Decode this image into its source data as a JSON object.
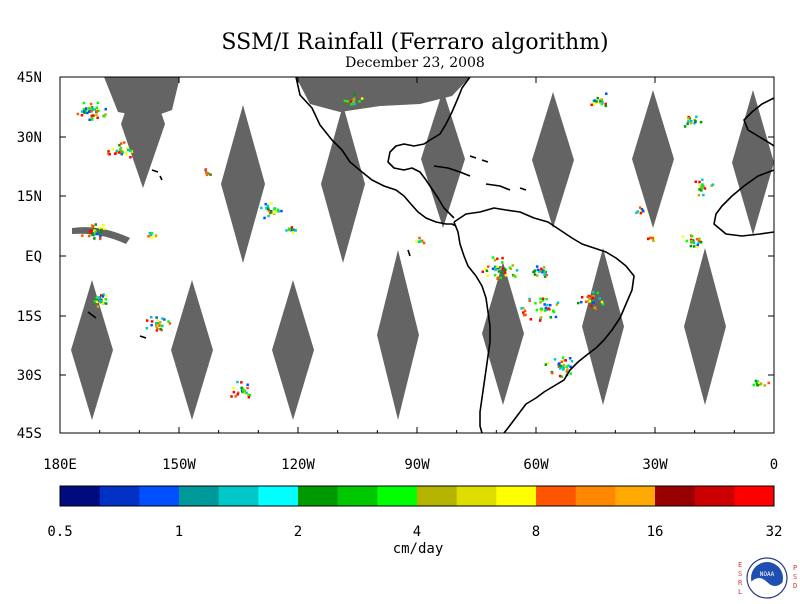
{
  "chart_data": {
    "type": "heatmap",
    "title": "SSM/I Rainfall (Ferraro algorithm)",
    "subtitle": "December 23, 2008",
    "y_ticks": [
      "45N",
      "30N",
      "15N",
      "EQ",
      "15S",
      "30S",
      "45S"
    ],
    "x_ticks": [
      "180E",
      "150W",
      "120W",
      "90W",
      "60W",
      "30W",
      "0"
    ],
    "colorbar": {
      "unit": "cm/day",
      "tick_labels": [
        "0.5",
        "1",
        "2",
        "4",
        "8",
        "16",
        "32"
      ],
      "colors": [
        "#000c7d",
        "#0030c4",
        "#0050ff",
        "#009999",
        "#00c8c8",
        "#00ffff",
        "#009900",
        "#00c800",
        "#00ff00",
        "#b3b300",
        "#dddd00",
        "#ffff00",
        "#ff5500",
        "#ff8800",
        "#ffaa00",
        "#990000",
        "#cc0000",
        "#ff0000"
      ]
    },
    "colors": {
      "nodata": "#646464",
      "coast": "#000000"
    }
  },
  "logo": {
    "left_letters": [
      "E",
      "S",
      "R",
      "L"
    ],
    "right_letters": [
      "P",
      "S",
      "D"
    ],
    "badge": "NOAA"
  }
}
